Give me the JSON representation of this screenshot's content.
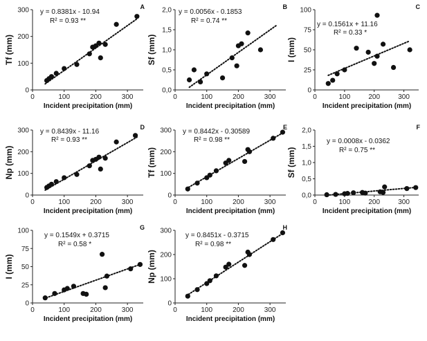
{
  "chart_data": [
    {
      "type": "scatter",
      "label": "A",
      "ylabel": "Tf (mm)",
      "xlabel": "Incident precipitation (mm)",
      "xlim": [
        0,
        350
      ],
      "xticks": [
        0,
        100,
        200,
        300
      ],
      "ylim": [
        0,
        300
      ],
      "yticks": [
        0,
        100,
        200,
        300
      ],
      "equation": "y = 0.8381x - 10.94",
      "r2": "R² = 0.93 **",
      "fit": {
        "slope": 0.8381,
        "intercept": -10.94,
        "x0": 40,
        "x1": 330
      },
      "x": [
        45,
        52,
        60,
        75,
        100,
        140,
        180,
        190,
        200,
        210,
        215,
        230,
        265,
        330
      ],
      "y": [
        35,
        42,
        50,
        62,
        80,
        95,
        135,
        160,
        165,
        175,
        120,
        170,
        245,
        275
      ]
    },
    {
      "type": "scatter",
      "label": "B",
      "ylabel": "Sf (mm)",
      "xlabel": "Incident precipitation (mm)",
      "xlim": [
        0,
        350
      ],
      "xticks": [
        0,
        100,
        200,
        300
      ],
      "ylim": [
        0,
        2
      ],
      "yticks": [
        "0,0",
        "0,5",
        "1,0",
        "1,5",
        "2,0"
      ],
      "equation": "y = 0.0056x - 0.1853",
      "r2": "R² = 0.74 **",
      "fit": {
        "slope": 0.0056,
        "intercept": -0.1853,
        "x0": 45,
        "x1": 320
      },
      "x": [
        45,
        60,
        80,
        100,
        150,
        180,
        195,
        200,
        210,
        230,
        270
      ],
      "y": [
        0.25,
        0.5,
        0.2,
        0.4,
        0.3,
        0.8,
        0.6,
        1.1,
        1.15,
        1.42,
        1.0
      ]
    },
    {
      "type": "scatter",
      "label": "C",
      "ylabel": "I (mm)",
      "xlabel": "Incident precipitation (mm)",
      "xlim": [
        0,
        350
      ],
      "xticks": [
        0,
        100,
        200,
        300
      ],
      "ylim": [
        0,
        100
      ],
      "yticks": [
        0,
        25,
        50,
        75,
        100
      ],
      "equation": "y = 0.1561x + 11.16",
      "r2": "R² = 0.33 *",
      "fit": {
        "slope": 0.1561,
        "intercept": 11.16,
        "x0": 45,
        "x1": 320
      },
      "x": [
        45,
        60,
        75,
        100,
        140,
        180,
        200,
        210,
        210,
        230,
        265,
        320
      ],
      "y": [
        8,
        12,
        20,
        25,
        52,
        47,
        33,
        42,
        93,
        57,
        28,
        50
      ]
    },
    {
      "type": "scatter",
      "label": "D",
      "ylabel": "Np (mm)",
      "xlabel": "Incident precipitation (mm)",
      "xlim": [
        0,
        350
      ],
      "xticks": [
        0,
        100,
        200,
        300
      ],
      "ylim": [
        0,
        300
      ],
      "yticks": [
        0,
        100,
        200,
        300
      ],
      "equation": "y = 0.8439x - 11.16",
      "r2": "R² = 0.93 **",
      "fit": {
        "slope": 0.8439,
        "intercept": -11.16,
        "x0": 40,
        "x1": 330
      },
      "x": [
        45,
        52,
        60,
        75,
        100,
        140,
        180,
        190,
        200,
        210,
        215,
        230,
        265,
        325
      ],
      "y": [
        35,
        42,
        50,
        62,
        80,
        95,
        135,
        160,
        165,
        175,
        120,
        170,
        245,
        275
      ]
    },
    {
      "type": "scatter",
      "label": "E",
      "ylabel": "Tf (mm)",
      "xlabel": "Incident precipitation (mm)",
      "xlim": [
        0,
        350
      ],
      "xticks": [
        0,
        100,
        200,
        300
      ],
      "ylim": [
        0,
        300
      ],
      "yticks": [
        0,
        100,
        200,
        300
      ],
      "equation": "y = 0.8442x - 0.30589",
      "r2": "R² = 0.98 **",
      "fit": {
        "slope": 0.8442,
        "intercept": -0.30589,
        "x0": 35,
        "x1": 345
      },
      "x": [
        40,
        70,
        100,
        110,
        130,
        160,
        170,
        220,
        230,
        235,
        310,
        340
      ],
      "y": [
        28,
        55,
        80,
        92,
        112,
        148,
        160,
        155,
        210,
        200,
        262,
        290
      ]
    },
    {
      "type": "scatter",
      "label": "F",
      "ylabel": "Sf (mm)",
      "xlabel": "Incident precipitation (mm)",
      "xlim": [
        0,
        350
      ],
      "xticks": [
        0,
        100,
        200,
        300
      ],
      "ylim": [
        0,
        2
      ],
      "yticks": [
        "0,0",
        "0,5",
        "1,0",
        "1,5",
        "2,0"
      ],
      "equation": "y = 0.0008x - 0.0362",
      "r2": "R² = 0.75 **",
      "fit": {
        "slope": 0.0008,
        "intercept": -0.0362,
        "x0": 40,
        "x1": 345
      },
      "x": [
        40,
        70,
        100,
        110,
        130,
        160,
        170,
        220,
        230,
        235,
        310,
        340
      ],
      "y": [
        0.01,
        0.02,
        0.04,
        0.05,
        0.07,
        0.08,
        0.06,
        0.1,
        0.08,
        0.25,
        0.2,
        0.23
      ]
    },
    {
      "type": "scatter",
      "label": "G",
      "ylabel": "I (mm)",
      "xlabel": "Incident precipitation (mm)",
      "xlim": [
        0,
        350
      ],
      "xticks": [
        0,
        100,
        200,
        300
      ],
      "ylim": [
        0,
        100
      ],
      "yticks": [
        0,
        25,
        50,
        75,
        100
      ],
      "equation": "y = 0.1549x + 0.3715",
      "r2": "R² = 0.58 *",
      "fit": {
        "slope": 0.1549,
        "intercept": 0.3715,
        "x0": 35,
        "x1": 345
      },
      "x": [
        40,
        70,
        100,
        110,
        130,
        160,
        170,
        220,
        230,
        235,
        310,
        340
      ],
      "y": [
        7,
        13,
        18,
        20,
        23,
        13,
        12,
        67,
        21,
        37,
        47,
        53
      ]
    },
    {
      "type": "scatter",
      "label": "H",
      "ylabel": "Np (mm)",
      "xlabel": "Incident precipitation (mm)",
      "xlim": [
        0,
        350
      ],
      "xticks": [
        0,
        100,
        200,
        300
      ],
      "ylim": [
        0,
        300
      ],
      "yticks": [
        0,
        100,
        200,
        300
      ],
      "equation": "y = 0.8451x - 0.3715",
      "r2": "R² = 0.98 **",
      "fit": {
        "slope": 0.8451,
        "intercept": -0.3715,
        "x0": 35,
        "x1": 345
      },
      "x": [
        40,
        70,
        100,
        110,
        130,
        160,
        170,
        220,
        230,
        235,
        310,
        340
      ],
      "y": [
        28,
        55,
        80,
        92,
        112,
        148,
        160,
        155,
        210,
        200,
        262,
        290
      ]
    }
  ]
}
